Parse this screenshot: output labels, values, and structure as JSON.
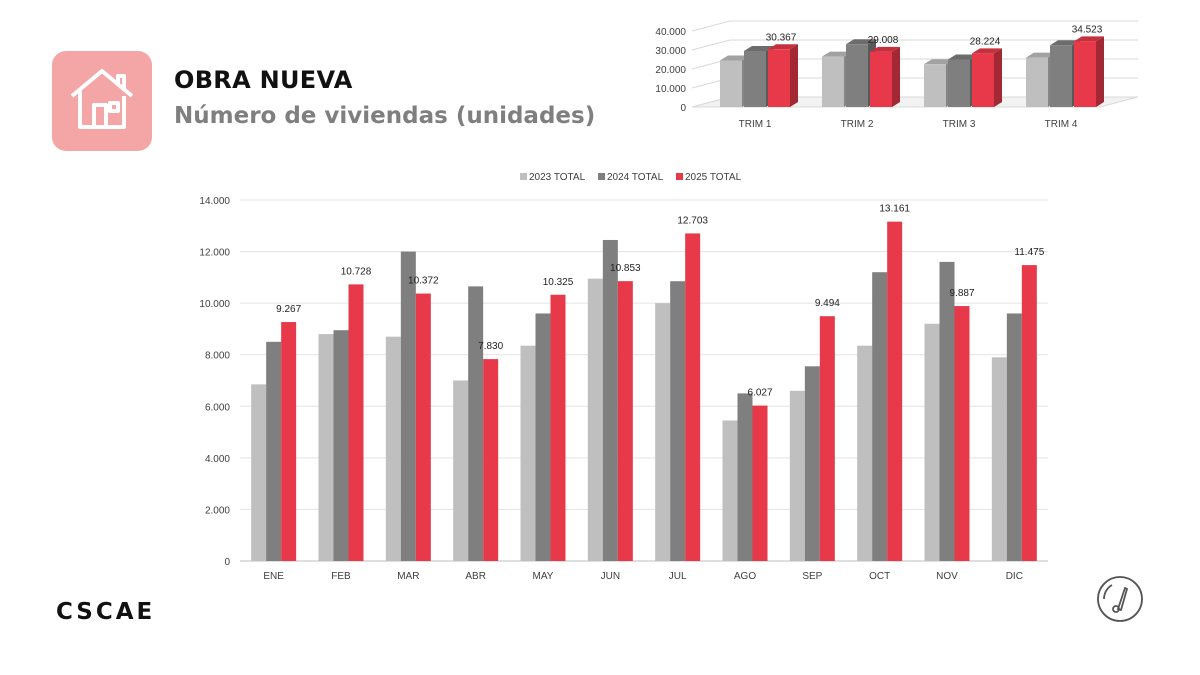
{
  "header": {
    "title": "OBRA NUEVA",
    "subtitle": "Número de viviendas (unidades)"
  },
  "logo": {
    "text": "CSCAE"
  },
  "colors": {
    "s2023": "#bfbfbf",
    "s2024": "#7f7f7f",
    "s2025": "#e8394a",
    "accent": "#f4a6a6"
  },
  "icons": {
    "header": "house-icon",
    "footer": "gauge-icon"
  },
  "chart_data": [
    {
      "type": "bar",
      "title": "",
      "categories": [
        "TRIM 1",
        "TRIM 2",
        "TRIM 3",
        "TRIM 4"
      ],
      "series": [
        {
          "name": "2023 TOTAL",
          "values": [
            24500,
            26500,
            22500,
            26000
          ]
        },
        {
          "name": "2024 TOTAL",
          "values": [
            29500,
            33000,
            25000,
            32500
          ]
        },
        {
          "name": "2025 TOTAL",
          "values": [
            30367,
            29008,
            28224,
            34523
          ]
        }
      ],
      "data_labels": [
        "30.367",
        "29.008",
        "28.224",
        "34.523"
      ],
      "yticks": [
        "0",
        "10.000",
        "20.000",
        "30.000",
        "40.000"
      ],
      "ylim": [
        0,
        40000
      ],
      "xlabel": "",
      "ylabel": "",
      "legend": "none",
      "grid": true
    },
    {
      "type": "bar",
      "title": "",
      "categories": [
        "ENE",
        "FEB",
        "MAR",
        "ABR",
        "MAY",
        "JUN",
        "JUL",
        "AGO",
        "SEP",
        "OCT",
        "NOV",
        "DIC"
      ],
      "series": [
        {
          "name": "2023 TOTAL",
          "values": [
            6850,
            8800,
            8700,
            7000,
            8350,
            10950,
            10000,
            5450,
            6600,
            8350,
            9200,
            7900
          ]
        },
        {
          "name": "2024 TOTAL",
          "values": [
            8500,
            8950,
            12000,
            10650,
            9600,
            12450,
            10850,
            6500,
            7550,
            11200,
            11600,
            9600
          ]
        },
        {
          "name": "2025 TOTAL",
          "values": [
            9267,
            10728,
            10372,
            7830,
            10325,
            10853,
            12703,
            6027,
            9494,
            13161,
            9887,
            11475
          ]
        }
      ],
      "data_labels": [
        "9.267",
        "10.728",
        "10.372",
        "7.830",
        "10.325",
        "10.853",
        "12.703",
        "6.027",
        "9.494",
        "13.161",
        "9.887",
        "11.475"
      ],
      "yticks": [
        "0",
        "2.000",
        "4.000",
        "6.000",
        "8.000",
        "10.000",
        "12.000",
        "14.000"
      ],
      "ylim": [
        0,
        14000
      ],
      "xlabel": "",
      "ylabel": "",
      "legend": "top-center",
      "grid": true
    }
  ]
}
